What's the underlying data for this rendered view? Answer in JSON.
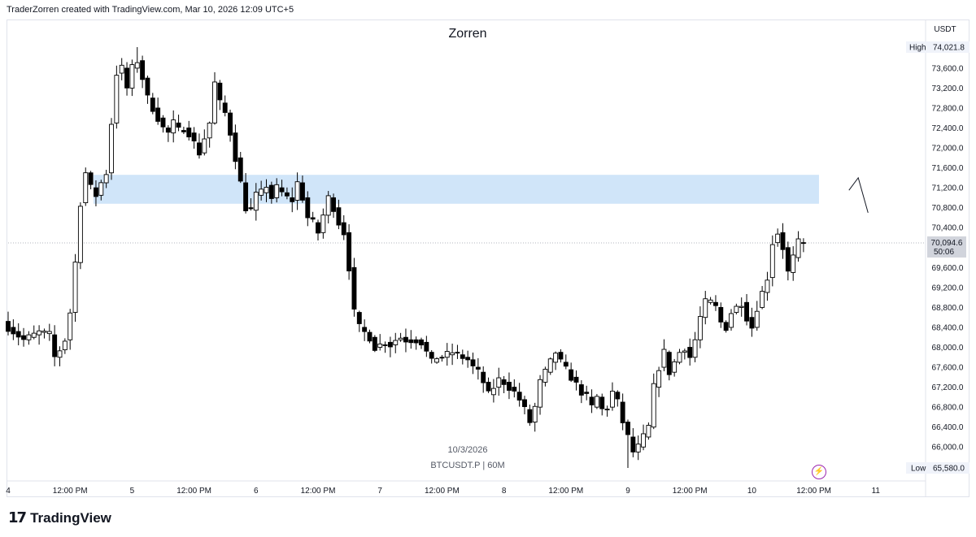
{
  "header": {
    "created_by": "TraderZorren created with TradingView.com, Mar 10, 2026 12:09 UTC+5"
  },
  "watermark": {
    "title": "Zorren",
    "date": "10/3/2026",
    "symbol": "BTCUSDT.P | 60M"
  },
  "footer": {
    "brand": "TradingView",
    "logo_icon": "tradingview-logo-icon"
  },
  "price_scale": {
    "currency": "USDT",
    "high_label": "High",
    "high_value": "74,021.8",
    "low_label": "Low",
    "low_value": "65,580.0",
    "last_price": "70,094.6",
    "countdown": "50:06"
  },
  "colors": {
    "up": "#ffffff",
    "down": "#000000",
    "zone": "#c8e0f8",
    "accent_purple": "#9c27b0"
  },
  "chart_data": {
    "type": "candlestick",
    "symbol": "BTCUSDT.P",
    "interval": "60M",
    "y_ticks": [
      66000,
      66400,
      66800,
      67200,
      67600,
      68000,
      68400,
      68800,
      69200,
      69600,
      70000,
      70400,
      70800,
      71200,
      71600,
      72000,
      72400,
      72800,
      73200,
      73600
    ],
    "y_tick_labels": [
      "66,000.0",
      "66,400.0",
      "66,800.0",
      "67,200.0",
      "67,600.0",
      "68,000.0",
      "68,400.0",
      "68,800.0",
      "69,200.0",
      "69,600.0",
      "70,000.0",
      "70,400.0",
      "70,800.0",
      "71,200.0",
      "71,600.0",
      "72,000.0",
      "72,400.0",
      "72,800.0",
      "73,200.0",
      "73,600.0"
    ],
    "ylim": [
      65400,
      74400
    ],
    "x_ticks": [
      {
        "label": "4",
        "bar": 0
      },
      {
        "label": "12:00 PM",
        "bar": 12
      },
      {
        "label": "5",
        "bar": 24
      },
      {
        "label": "12:00 PM",
        "bar": 36
      },
      {
        "label": "6",
        "bar": 48
      },
      {
        "label": "12:00 PM",
        "bar": 60
      },
      {
        "label": "7",
        "bar": 72
      },
      {
        "label": "12:00 PM",
        "bar": 84
      },
      {
        "label": "8",
        "bar": 96
      },
      {
        "label": "12:00 PM",
        "bar": 108
      },
      {
        "label": "9",
        "bar": 120
      },
      {
        "label": "12:00 PM",
        "bar": 132
      },
      {
        "label": "10",
        "bar": 144
      },
      {
        "label": "12:00 PM",
        "bar": 156
      },
      {
        "label": "11",
        "bar": 168
      }
    ],
    "supply_zone": {
      "from_bar": 17,
      "to_bar": 157,
      "low": 70880,
      "high": 71460
    },
    "current_price": 70094.6,
    "projection": [
      {
        "bar": 162.8,
        "price": 71150
      },
      {
        "bar": 164.6,
        "price": 71400
      },
      {
        "bar": 166.5,
        "price": 70700
      }
    ],
    "close_path": [
      [
        0,
        68400
      ],
      [
        3,
        68150
      ],
      [
        6,
        68300
      ],
      [
        8,
        68250
      ],
      [
        9,
        67800
      ],
      [
        10,
        67950
      ],
      [
        11,
        68150
      ],
      [
        12,
        68700
      ],
      [
        13,
        69700
      ],
      [
        14,
        70900
      ],
      [
        15,
        71500
      ],
      [
        16,
        71200
      ],
      [
        17,
        71050
      ],
      [
        18,
        71300
      ],
      [
        19,
        71500
      ],
      [
        20,
        72500
      ],
      [
        21,
        73500
      ],
      [
        22,
        73600
      ],
      [
        23,
        73200
      ],
      [
        24,
        73600
      ],
      [
        25,
        73750
      ],
      [
        26,
        73400
      ],
      [
        27,
        73000
      ],
      [
        28,
        72800
      ],
      [
        29,
        72600
      ],
      [
        30,
        72400
      ],
      [
        31,
        72300
      ],
      [
        32,
        72500
      ],
      [
        33,
        72350
      ],
      [
        34,
        72400
      ],
      [
        35,
        72300
      ],
      [
        36,
        72100
      ],
      [
        37,
        71900
      ],
      [
        38,
        72200
      ],
      [
        39,
        72500
      ],
      [
        40,
        73300
      ],
      [
        41,
        72900
      ],
      [
        42,
        72700
      ],
      [
        43,
        72300
      ],
      [
        44,
        71800
      ],
      [
        45,
        71300
      ],
      [
        46,
        70800
      ],
      [
        47,
        70750
      ],
      [
        48,
        71050
      ],
      [
        49,
        71100
      ],
      [
        50,
        71250
      ],
      [
        51,
        71000
      ],
      [
        52,
        71200
      ],
      [
        53,
        71100
      ],
      [
        54,
        71000
      ],
      [
        55,
        70950
      ],
      [
        56,
        71300
      ],
      [
        57,
        71000
      ],
      [
        58,
        70600
      ],
      [
        59,
        70500
      ],
      [
        60,
        70300
      ],
      [
        61,
        70650
      ],
      [
        62,
        71000
      ],
      [
        63,
        70800
      ],
      [
        64,
        70500
      ],
      [
        65,
        70300
      ],
      [
        66,
        69600
      ],
      [
        67,
        68700
      ],
      [
        68,
        68400
      ],
      [
        69,
        68300
      ],
      [
        70,
        68200
      ],
      [
        71,
        68000
      ],
      [
        72,
        68050
      ],
      [
        73,
        68100
      ],
      [
        74,
        68050
      ],
      [
        75,
        68150
      ],
      [
        76,
        68200
      ],
      [
        77,
        68150
      ],
      [
        78,
        68150
      ],
      [
        79,
        68150
      ],
      [
        80,
        68100
      ],
      [
        81,
        67900
      ],
      [
        82,
        67700
      ],
      [
        83,
        67800
      ],
      [
        84,
        67800
      ],
      [
        85,
        67850
      ],
      [
        86,
        67900
      ],
      [
        87,
        67850
      ],
      [
        88,
        67800
      ],
      [
        89,
        67750
      ],
      [
        90,
        67600
      ],
      [
        91,
        67500
      ],
      [
        92,
        67300
      ],
      [
        93,
        67050
      ],
      [
        94,
        67200
      ],
      [
        95,
        67350
      ],
      [
        96,
        67300
      ],
      [
        97,
        67200
      ],
      [
        98,
        67100
      ],
      [
        99,
        66950
      ],
      [
        100,
        66750
      ],
      [
        101,
        66500
      ],
      [
        102,
        66800
      ],
      [
        103,
        67300
      ],
      [
        104,
        67500
      ],
      [
        105,
        67700
      ],
      [
        106,
        67900
      ],
      [
        107,
        67700
      ],
      [
        108,
        67550
      ],
      [
        109,
        67400
      ],
      [
        110,
        67250
      ],
      [
        111,
        67100
      ],
      [
        112,
        67000
      ],
      [
        113,
        66800
      ],
      [
        114,
        67000
      ],
      [
        115,
        66750
      ],
      [
        116,
        66800
      ],
      [
        117,
        67100
      ],
      [
        118,
        66900
      ],
      [
        119,
        66500
      ],
      [
        120,
        66200
      ],
      [
        121,
        65900
      ],
      [
        122,
        66000
      ],
      [
        123,
        66200
      ],
      [
        124,
        66400
      ],
      [
        125,
        67200
      ],
      [
        126,
        67600
      ],
      [
        127,
        67900
      ],
      [
        128,
        67500
      ],
      [
        129,
        67700
      ],
      [
        130,
        67900
      ],
      [
        131,
        68000
      ],
      [
        132,
        67800
      ],
      [
        133,
        68150
      ],
      [
        134,
        68600
      ],
      [
        135,
        68900
      ],
      [
        136,
        68900
      ],
      [
        137,
        68800
      ],
      [
        138,
        68500
      ],
      [
        139,
        68400
      ],
      [
        140,
        68700
      ],
      [
        141,
        68800
      ],
      [
        142,
        68900
      ],
      [
        143,
        68600
      ],
      [
        144,
        68400
      ],
      [
        145,
        68800
      ],
      [
        146,
        69100
      ],
      [
        147,
        69400
      ],
      [
        148,
        70100
      ],
      [
        149,
        70300
      ],
      [
        150,
        70000
      ],
      [
        151,
        69500
      ],
      [
        152,
        69800
      ],
      [
        153,
        70100
      ],
      [
        154,
        70094.6
      ]
    ]
  }
}
